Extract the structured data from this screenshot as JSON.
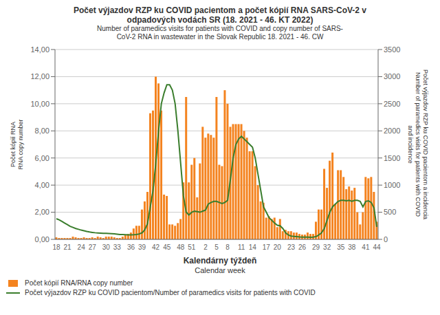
{
  "chart_data": {
    "type": "bar",
    "title": "Počet výjazdov RZP ku COVID pacientom a počet kópií RNA  SARS-CoV-2 v\nodpadových vodách SR (18. 2021 - 46. KT 2022)",
    "subtitle": "Number of paramedics visits for patients with COVID and copy number of SARS-\nCoV-2 RNA in wastewater in the Slovak Republic 18. 2021 - 46. CW",
    "xlabel": "Kalendárny týždeň\nCalendar week",
    "ylabel": "Počet kópií RNA\nRNA copy number",
    "y2label": "Počet výjazdov RZP ku COVID pacientom a incidencia\nNumber of paramedics visits for patients with COVID\nand incidence",
    "categories": [
      "18",
      null,
      null,
      null,
      "21",
      null,
      null,
      null,
      null,
      "24",
      null,
      null,
      null,
      "27",
      null,
      null,
      null,
      null,
      "30",
      null,
      null,
      null,
      "33",
      null,
      null,
      null,
      null,
      "36",
      null,
      null,
      null,
      "39",
      null,
      null,
      null,
      null,
      "42",
      null,
      null,
      null,
      "45",
      null,
      null,
      null,
      null,
      "48",
      null,
      null,
      null,
      "51",
      null,
      null,
      null,
      null,
      "2",
      null,
      null,
      null,
      "5",
      null,
      null,
      null,
      "8",
      null,
      null,
      null,
      null,
      "11",
      null,
      null,
      null,
      "14",
      null,
      null,
      null,
      null,
      "17",
      null,
      null,
      null,
      "20",
      null,
      null,
      null,
      null,
      "23",
      null,
      null,
      null,
      "26",
      null,
      null,
      null,
      null,
      "29",
      null,
      null,
      null,
      "32",
      null,
      null,
      null,
      null,
      "35",
      null,
      null,
      null,
      "38",
      null,
      null,
      null,
      null,
      "41",
      null,
      null,
      null,
      "44"
    ],
    "series": [
      {
        "name": "Počet kópií RNA/RNA copy number",
        "type": "bar",
        "color": "#F4831F",
        "values": [
          0.15,
          0.1,
          0.1,
          0.1,
          0.1,
          0.1,
          0.2,
          0.15,
          0.1,
          0.1,
          0.15,
          0.1,
          0.1,
          0.15,
          0.1,
          0.2,
          0.15,
          0.1,
          0.2,
          0.2,
          0.2,
          0.15,
          0.1,
          0.1,
          0.2,
          0.3,
          0.4,
          0.5,
          0.8,
          1.0,
          1.0,
          2.2,
          2.8,
          3.5,
          9.3,
          9.5,
          12.0,
          11.5,
          9.5,
          3.3,
          3.2,
          1.1,
          1.1,
          1.0,
          1.2,
          1.5,
          4.2,
          10.5,
          4.2,
          5.5,
          6.0,
          3.1,
          5.6,
          8.3,
          7.5,
          7.8,
          7.7,
          7.5,
          10.5,
          5.5,
          5.4,
          11.0,
          10.0,
          8.3,
          8.5,
          8.5,
          8.5,
          8.5,
          8.0,
          7.5,
          6.5,
          6.5,
          5.4,
          4.0,
          2.8,
          2.7,
          1.6,
          1.7,
          1.5,
          1.6,
          0.9,
          1.5,
          0.6,
          0.7,
          0.6,
          0.6,
          0.5,
          0.5,
          0.4,
          0.35,
          0.35,
          0.5,
          0.4,
          0.4,
          1.3,
          2.2,
          2.2,
          5.2,
          3.8,
          5.8,
          6.4,
          2.6,
          5.1,
          5.1,
          4.6,
          3.7,
          3.9,
          3.6,
          3.8,
          2.0,
          1.1,
          2.0,
          4.6,
          4.5,
          4.6,
          3.5,
          1.3
        ]
      },
      {
        "name": "Počet výjazdov RZP ku COVID pacientom/Number of paramedics visits for patients with COVID",
        "type": "line",
        "axis": "y2",
        "color": "#3A7D2C",
        "line_style": "solid",
        "values": [
          380,
          360,
          330,
          300,
          270,
          240,
          220,
          200,
          185,
          170,
          158,
          145,
          135,
          128,
          122,
          118,
          115,
          112,
          110,
          108,
          105,
          100,
          95,
          90,
          88,
          85,
          83,
          83,
          85,
          90,
          100,
          120,
          175,
          290,
          600,
          900,
          1400,
          2000,
          2500,
          2700,
          2850,
          2850,
          2750,
          2500,
          2000,
          1400,
          800,
          500,
          450,
          500,
          520,
          510,
          500,
          520,
          540,
          650,
          680,
          700,
          700,
          680,
          660,
          680,
          720,
          1100,
          1500,
          1750,
          1850,
          1900,
          1850,
          1800,
          1750,
          1700,
          1500,
          1200,
          900,
          600,
          500,
          400,
          350,
          300,
          260,
          250,
          200,
          120,
          80,
          60,
          55,
          50,
          45,
          42,
          40,
          40,
          38,
          40,
          50,
          80,
          120,
          200,
          350,
          500,
          600,
          650,
          700,
          720,
          720,
          710,
          720,
          700,
          720,
          720,
          700,
          600,
          700,
          710,
          680,
          580,
          230
        ]
      }
    ],
    "ylim": [
      0,
      14
    ],
    "yticks": [
      {
        "value": 0.0,
        "label": "0,00"
      },
      {
        "value": 2.0,
        "label": "2,00"
      },
      {
        "value": 4.0,
        "label": "4,00"
      },
      {
        "value": 6.0,
        "label": "6,00"
      },
      {
        "value": 8.0,
        "label": "8,00"
      },
      {
        "value": 10.0,
        "label": "10,00"
      },
      {
        "value": 12.0,
        "label": "12,00"
      },
      {
        "value": 14.0,
        "label": "14,00"
      }
    ],
    "y2lim": [
      0,
      3500
    ],
    "y2ticks": [
      0,
      500,
      1000,
      1500,
      2000,
      2500,
      3000,
      3500
    ],
    "grid": true,
    "legend": "lower left"
  }
}
